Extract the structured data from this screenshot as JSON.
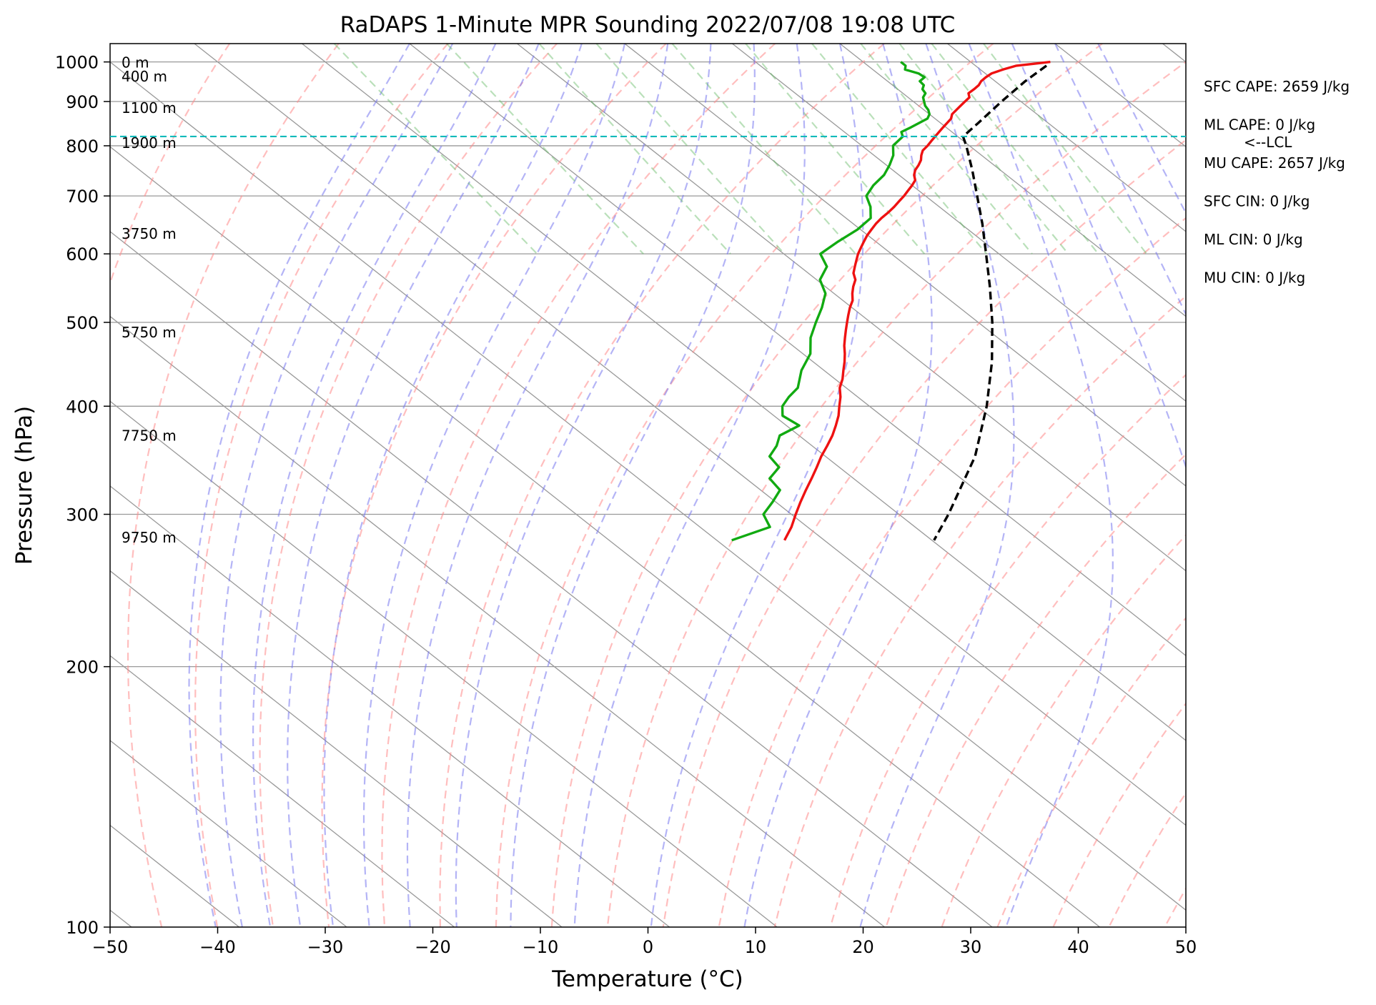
{
  "chart_data": {
    "type": "skew-t",
    "title": "RaDAPS 1-Minute MPR Sounding 2022/07/08 19:08 UTC",
    "xlabel": "Temperature (°C)",
    "ylabel": "Pressure (hPa)",
    "xlim": [
      -50,
      50
    ],
    "ylim": [
      1050,
      100
    ],
    "x_ticks": [
      -50,
      -40,
      -30,
      -20,
      -10,
      0,
      10,
      20,
      30,
      40,
      50
    ],
    "x_tick_labels": [
      "−50",
      "−40",
      "−30",
      "−20",
      "−10",
      "0",
      "10",
      "20",
      "30",
      "40",
      "50"
    ],
    "y_ticks": [
      1000,
      900,
      800,
      700,
      600,
      500,
      400,
      300,
      200,
      100
    ],
    "y_tick_labels": [
      "1000",
      "900",
      "800",
      "700",
      "600",
      "500",
      "400",
      "300",
      "200",
      "100"
    ],
    "grid": true,
    "skew_reference_pressure": 1000,
    "skew_deg_per_decade": 102,
    "temperature": {
      "color": "#ee1111",
      "pressure": [
        1000,
        995,
        990,
        980,
        970,
        960,
        950,
        940,
        930,
        920,
        910,
        900,
        890,
        880,
        870,
        860,
        850,
        840,
        830,
        820,
        810,
        800,
        790,
        780,
        770,
        760,
        750,
        740,
        730,
        720,
        710,
        700,
        690,
        680,
        670,
        660,
        650,
        640,
        630,
        620,
        610,
        600,
        590,
        580,
        570,
        560,
        550,
        540,
        530,
        520,
        510,
        500,
        490,
        480,
        470,
        460,
        450,
        440,
        430,
        420,
        410,
        400,
        390,
        380,
        370,
        360,
        350,
        340,
        330,
        320,
        310,
        300,
        290,
        280
      ],
      "temp": [
        37.4,
        35.6,
        33.8,
        32.1,
        30.6,
        29.6,
        28.7,
        28.0,
        27.1,
        26.1,
        25.7,
        24.8,
        23.9,
        23.0,
        22.1,
        21.5,
        20.6,
        19.7,
        18.8,
        17.9,
        17.0,
        16.1,
        15.1,
        14.4,
        13.8,
        13.0,
        12.1,
        11.4,
        10.9,
        10.0,
        9.0,
        8.0,
        6.9,
        5.8,
        4.6,
        3.3,
        2.1,
        1.0,
        -0.1,
        -1.1,
        -2.1,
        -3.1,
        -4.0,
        -4.9,
        -5.8,
        -6.4,
        -7.4,
        -8.3,
        -9.1,
        -10.2,
        -11.2,
        -12.2,
        -13.2,
        -14.2,
        -15.2,
        -16.1,
        -17.1,
        -18.2,
        -19.3,
        -20.6,
        -21.6,
        -22.8,
        -24.0,
        -25.4,
        -26.9,
        -28.6,
        -30.4,
        -32.1,
        -33.9,
        -35.8,
        -37.7,
        -39.6,
        -41.5,
        -43.7
      ]
    },
    "dewpoint": {
      "color": "#11aa11",
      "pressure": [
        1000,
        990,
        980,
        970,
        960,
        950,
        940,
        930,
        920,
        910,
        900,
        890,
        880,
        870,
        860,
        850,
        840,
        830,
        820,
        810,
        800,
        780,
        760,
        740,
        720,
        700,
        680,
        660,
        640,
        620,
        600,
        580,
        560,
        540,
        520,
        500,
        480,
        460,
        440,
        420,
        410,
        400,
        390,
        380,
        370,
        360,
        350,
        340,
        330,
        320,
        310,
        300,
        290,
        280
      ],
      "dewp": [
        23.5,
        23.5,
        23.0,
        23.8,
        23.9,
        23.0,
        22.9,
        22.3,
        22.1,
        21.4,
        21.0,
        20.6,
        20.4,
        20.0,
        19.3,
        18.0,
        16.7,
        15.3,
        14.9,
        13.9,
        12.9,
        11.8,
        10.3,
        8.6,
        6.4,
        4.5,
        3.6,
        2.3,
        -0.3,
        -3.5,
        -6.6,
        -7.5,
        -9.7,
        -10.8,
        -12.8,
        -15.1,
        -17.4,
        -19.3,
        -22.1,
        -24.5,
        -26.4,
        -28.1,
        -29.2,
        -28.8,
        -31.8,
        -33.3,
        -35.2,
        -35.6,
        -37.8,
        -38.2,
        -40.3,
        -42.6,
        -43.5,
        -48.6
      ]
    },
    "parcel": {
      "color": "#000000",
      "pressure": [
        990,
        950,
        900,
        850,
        820,
        800,
        750,
        700,
        650,
        600,
        550,
        500,
        450,
        400,
        350,
        300,
        280
      ],
      "temp": [
        36.6,
        32.8,
        28.2,
        23.5,
        20.5,
        19.7,
        17.4,
        14.8,
        12.0,
        8.8,
        5.3,
        1.3,
        -3.4,
        -9.1,
        -16.1,
        -25.4,
        -29.8
      ]
    },
    "lcl": {
      "pressure": 820,
      "label": "<--LCL",
      "color": "#11bbbb"
    },
    "height_labels": [
      {
        "text": "9750 m",
        "pressure": 282
      },
      {
        "text": "7750 m",
        "pressure": 370
      },
      {
        "text": "5750 m",
        "pressure": 487
      },
      {
        "text": "3750 m",
        "pressure": 633
      },
      {
        "text": "1900 m",
        "pressure": 806
      },
      {
        "text": "1100 m",
        "pressure": 885
      },
      {
        "text": "400 m",
        "pressure": 962
      },
      {
        "text": "0 m",
        "pressure": 998
      }
    ],
    "stats": [
      "SFC CAPE: 2659 J/kg",
      "ML CAPE: 0 J/kg",
      "MU CAPE: 2657 J/kg",
      "SFC CIN: 0 J/kg",
      "ML CIN: 0 J/kg",
      "MU CIN: 0 J/kg"
    ],
    "background_lines": {
      "isotherm_color": "#999999",
      "dry_adiabat_color": "#ff8888",
      "moist_adiabat_color": "#7777ee",
      "mixing_ratio_color": "#66bb66"
    }
  }
}
